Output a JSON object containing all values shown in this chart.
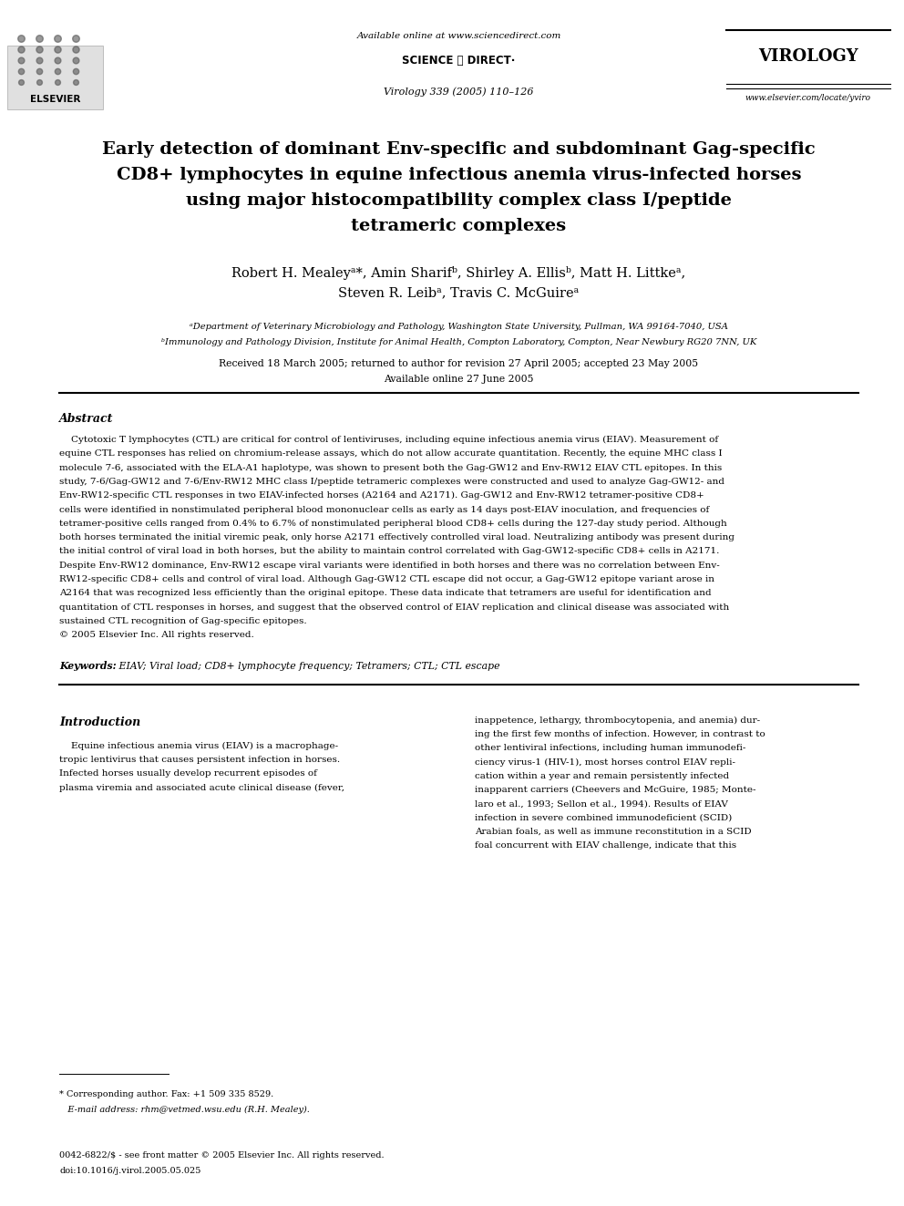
{
  "background_color": "#ffffff",
  "page_width": 9.92,
  "page_height": 13.23,
  "header": {
    "available_online": "Available online at www.sciencedirect.com",
    "journal_name": "VIROLOGY",
    "journal_issue": "Virology 339 (2005) 110–126",
    "website": "www.elsevier.com/locate/yviro"
  },
  "affil_a": "ᵃDepartment of Veterinary Microbiology and Pathology, Washington State University, Pullman, WA 99164-7040, USA",
  "affil_b": "ᵇImmunology and Pathology Division, Institute for Animal Health, Compton Laboratory, Compton, Near Newbury RG20 7NN, UK",
  "received": "Received 18 March 2005; returned to author for revision 27 April 2005; accepted 23 May 2005",
  "available": "Available online 27 June 2005",
  "abstract_title": "Abstract",
  "keywords_label": "Keywords:",
  "keywords_text": " EIAV; Viral load; CD8+ lymphocyte frequency; Tetramers; CTL; CTL escape",
  "intro_title": "Introduction",
  "footnote1": "* Corresponding author. Fax: +1 509 335 8529.",
  "footnote2": "   E-mail address: rhm@vetmed.wsu.edu (R.H. Mealey).",
  "footnote3": "0042-6822/$ - see front matter © 2005 Elsevier Inc. All rights reserved.",
  "footnote4": "doi:10.1016/j.virol.2005.05.025",
  "title_lines": [
    "Early detection of dominant Env-specific and subdominant Gag-specific",
    "CD8+ lymphocytes in equine infectious anemia virus-infected horses",
    "using major histocompatibility complex class I/peptide",
    "tetrameric complexes"
  ],
  "author_lines": [
    "Robert H. Mealeyᵃ*, Amin Sharifᵇ, Shirley A. Ellisᵇ, Matt H. Littkeᵃ,",
    "Steven R. Leibᵃ, Travis C. McGuireᵃ"
  ],
  "abstract_lines": [
    "    Cytotoxic T lymphocytes (CTL) are critical for control of lentiviruses, including equine infectious anemia virus (EIAV). Measurement of",
    "equine CTL responses has relied on chromium-release assays, which do not allow accurate quantitation. Recently, the equine MHC class I",
    "molecule 7-6, associated with the ELA-A1 haplotype, was shown to present both the Gag-GW12 and Env-RW12 EIAV CTL epitopes. In this",
    "study, 7-6/Gag-GW12 and 7-6/Env-RW12 MHC class I/peptide tetrameric complexes were constructed and used to analyze Gag-GW12- and",
    "Env-RW12-specific CTL responses in two EIAV-infected horses (A2164 and A2171). Gag-GW12 and Env-RW12 tetramer-positive CD8+",
    "cells were identified in nonstimulated peripheral blood mononuclear cells as early as 14 days post-EIAV inoculation, and frequencies of",
    "tetramer-positive cells ranged from 0.4% to 6.7% of nonstimulated peripheral blood CD8+ cells during the 127-day study period. Although",
    "both horses terminated the initial viremic peak, only horse A2171 effectively controlled viral load. Neutralizing antibody was present during",
    "the initial control of viral load in both horses, but the ability to maintain control correlated with Gag-GW12-specific CD8+ cells in A2171.",
    "Despite Env-RW12 dominance, Env-RW12 escape viral variants were identified in both horses and there was no correlation between Env-",
    "RW12-specific CD8+ cells and control of viral load. Although Gag-GW12 CTL escape did not occur, a Gag-GW12 epitope variant arose in",
    "A2164 that was recognized less efficiently than the original epitope. These data indicate that tetramers are useful for identification and",
    "quantitation of CTL responses in horses, and suggest that the observed control of EIAV replication and clinical disease was associated with",
    "sustained CTL recognition of Gag-specific epitopes.",
    "© 2005 Elsevier Inc. All rights reserved."
  ],
  "intro_col1_lines": [
    "    Equine infectious anemia virus (EIAV) is a macrophage-",
    "tropic lentivirus that causes persistent infection in horses.",
    "Infected horses usually develop recurrent episodes of",
    "plasma viremia and associated acute clinical disease (fever,"
  ],
  "intro_col2_lines": [
    "inappetence, lethargy, thrombocytopenia, and anemia) dur-",
    "ing the first few months of infection. However, in contrast to",
    "other lentiviral infections, including human immunodefi-",
    "ciency virus-1 (HIV-1), most horses control EIAV repli-",
    "cation within a year and remain persistently infected",
    "inapparent carriers (Cheevers and McGuire, 1985; Monte-",
    "laro et al., 1993; Sellon et al., 1994). Results of EIAV",
    "infection in severe combined immunodeficient (SCID)",
    "Arabian foals, as well as immune reconstitution in a SCID",
    "foal concurrent with EIAV challenge, indicate that this"
  ]
}
